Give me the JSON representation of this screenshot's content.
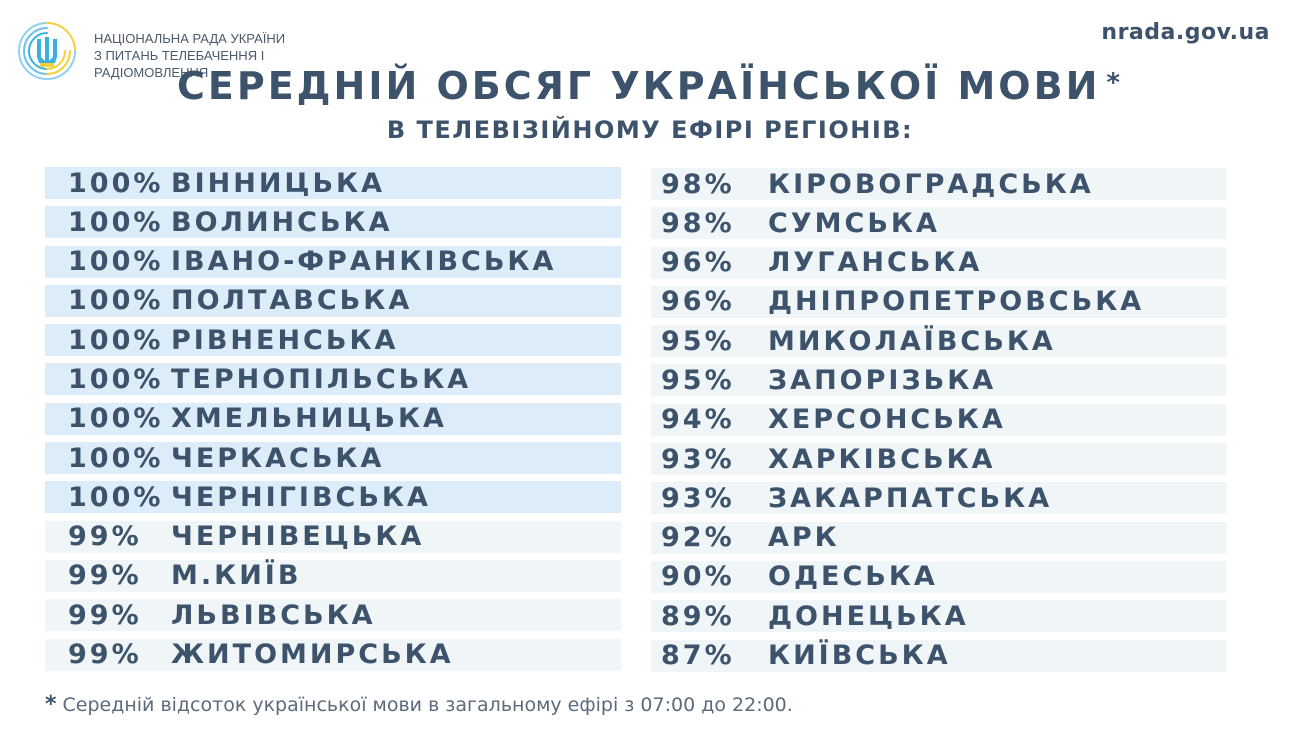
{
  "header": {
    "org_lines": [
      "НАЦІОНАЛЬНА РАДА УКРАЇНИ",
      "З ПИТАНЬ ТЕЛЕБАЧЕННЯ І",
      "РАДІОМОВЛЕННЯ"
    ],
    "site": "nrada.gov.ua",
    "logo_icon": "trident-icon"
  },
  "colors": {
    "text": "#3d536b",
    "highlight_row": "#dcedf9",
    "normal_row": "#f0f5f8",
    "logo_blue": "#3ab0e0",
    "logo_yellow": "#f5d03a"
  },
  "chart_data": {
    "type": "table",
    "title": "СЕРЕДНІЙ ОБСЯГ УКРАЇНСЬКОЇ МОВИ",
    "title_mark": "*",
    "subtitle": "В ТЕЛЕВІЗІЙНОМУ ЕФІРІ РЕГІОНІВ:",
    "left": [
      {
        "value": "100%",
        "region": "ВІННИЦЬКА"
      },
      {
        "value": "100%",
        "region": "ВОЛИНСЬКА"
      },
      {
        "value": "100%",
        "region": "ІВАНО-ФРАНКІВСЬКА"
      },
      {
        "value": "100%",
        "region": "ПОЛТАВСЬКА"
      },
      {
        "value": "100%",
        "region": "РІВНЕНСЬКА"
      },
      {
        "value": "100%",
        "region": "ТЕРНОПІЛЬСЬКА"
      },
      {
        "value": "100%",
        "region": "ХМЕЛЬНИЦЬКА"
      },
      {
        "value": "100%",
        "region": "ЧЕРКАСЬКА"
      },
      {
        "value": "100%",
        "region": "ЧЕРНІГІВСЬКА"
      },
      {
        "value": "99%",
        "region": "ЧЕРНІВЕЦЬКА"
      },
      {
        "value": "99%",
        "region": "М.КИЇВ"
      },
      {
        "value": "99%",
        "region": "ЛЬВІВСЬКА"
      },
      {
        "value": "99%",
        "region": "ЖИТОМИРСЬКА"
      }
    ],
    "right": [
      {
        "value": "98%",
        "region": "КІРОВОГРАДСЬКА"
      },
      {
        "value": "98%",
        "region": "СУМСЬКА"
      },
      {
        "value": "96%",
        "region": "ЛУГАНСЬКА"
      },
      {
        "value": "96%",
        "region": "ДНІПРОПЕТРОВСЬКА"
      },
      {
        "value": "95%",
        "region": "МИКОЛАЇВСЬКА"
      },
      {
        "value": "95%",
        "region": "ЗАПОРІЗЬКА"
      },
      {
        "value": "94%",
        "region": "ХЕРСОНСЬКА"
      },
      {
        "value": "93%",
        "region": "ХАРКІВСЬКА"
      },
      {
        "value": "93%",
        "region": "ЗАКАРПАТСЬКА"
      },
      {
        "value": "92%",
        "region": "АРК"
      },
      {
        "value": "90%",
        "region": "ОДЕСЬКА"
      },
      {
        "value": "89%",
        "region": "ДОНЕЦЬКА"
      },
      {
        "value": "87%",
        "region": "КИЇВСЬКА"
      }
    ]
  },
  "footnote": {
    "mark": "*",
    "text": "Середній відсоток української мови в загальному ефірі з 07:00 до 22:00."
  }
}
